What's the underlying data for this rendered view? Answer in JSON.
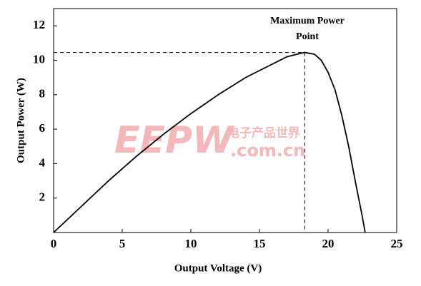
{
  "chart_data": {
    "type": "line",
    "xlabel": "Output Voltage (V)",
    "ylabel": "Output Power (W)",
    "annotation": [
      "Maximum Power",
      "Point"
    ],
    "watermark": [
      "EEPW",
      ".com.cn",
      "电子产品世界"
    ],
    "x": [
      0,
      2,
      4,
      6,
      8,
      10,
      12,
      14,
      16,
      17,
      18,
      18.3,
      19,
      19.5,
      20,
      20.5,
      21,
      21.5,
      22,
      22.5,
      22.7
    ],
    "series": [
      {
        "name": "Output Power",
        "color": "#000000",
        "values": [
          0,
          1.5,
          3.0,
          4.4,
          5.7,
          6.9,
          8.0,
          9.0,
          9.8,
          10.2,
          10.4,
          10.45,
          10.35,
          10.0,
          9.3,
          8.3,
          6.8,
          5.0,
          2.9,
          0.9,
          0
        ]
      }
    ],
    "mpp": {
      "x": 18.3,
      "y": 10.45
    },
    "xlim": [
      0,
      25
    ],
    "xticks": [
      0,
      5,
      10,
      15,
      20,
      25
    ],
    "ylim": [
      0,
      13
    ],
    "yticks": [
      2,
      4,
      6,
      8,
      10,
      12
    ]
  }
}
